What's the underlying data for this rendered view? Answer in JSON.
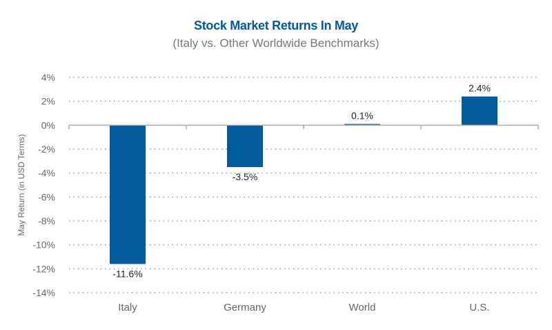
{
  "chart_data": {
    "type": "bar",
    "title": "Stock Market Returns In May",
    "subtitle": "(Italy vs. Other Worldwide Benchmarks)",
    "xlabel": "",
    "ylabel": "May Return (in USD Terms)",
    "categories": [
      "Italy",
      "Germany",
      "World",
      "U.S."
    ],
    "values": [
      -11.6,
      -3.5,
      0.1,
      2.4
    ],
    "data_labels": [
      "-11.6%",
      "-3.5%",
      "0.1%",
      "2.4%"
    ],
    "ylim": [
      -14,
      4
    ],
    "yticks": [
      4,
      2,
      0,
      -2,
      -4,
      -6,
      -8,
      -10,
      -12,
      -14
    ],
    "ytick_labels": [
      "4%",
      "2%",
      "0%",
      "-2%",
      "-4%",
      "-6%",
      "-8%",
      "-10%",
      "-12%",
      "-14%"
    ],
    "grid": true,
    "colors": {
      "bar": "#005a9c",
      "title": "#005a9c",
      "text": "#666666",
      "grid": "#999999"
    }
  }
}
